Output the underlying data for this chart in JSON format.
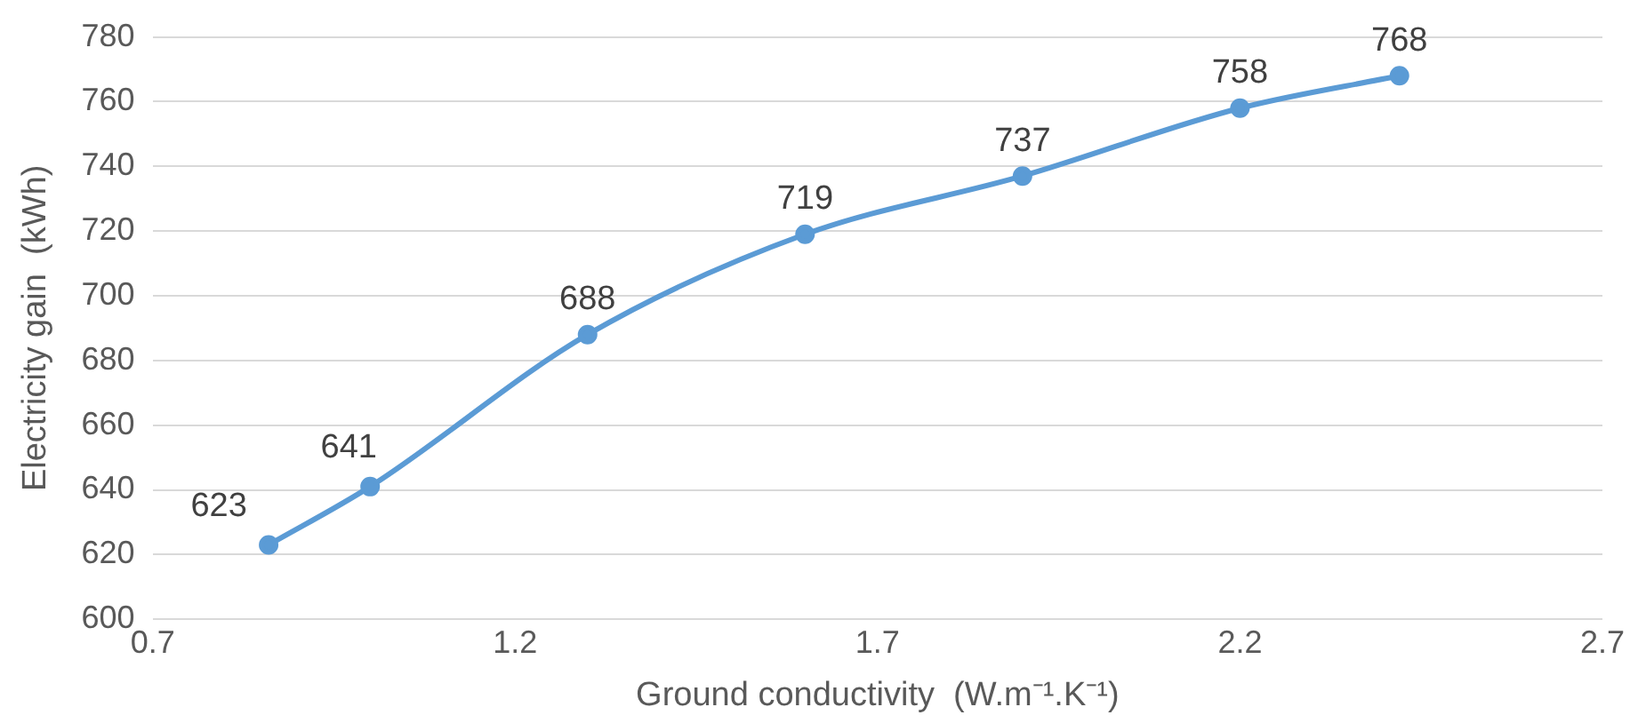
{
  "chart_data": {
    "type": "line",
    "xlabel": "Ground conductivity  (W.m⁻¹.K⁻¹)",
    "ylabel": "Electricity gain  (kWh)",
    "x": [
      0.86,
      1.0,
      1.3,
      1.6,
      1.9,
      2.2,
      2.42
    ],
    "series": [
      {
        "color": "#5b9bd5",
        "values": [
          623,
          641,
          688,
          719,
          737,
          758,
          768
        ]
      }
    ],
    "xlim": [
      0.7,
      2.7
    ],
    "xticks": [
      0.7,
      1.2,
      1.7,
      2.2,
      2.7
    ],
    "ylim": [
      600,
      780
    ],
    "yticks": [
      600,
      620,
      640,
      660,
      680,
      700,
      720,
      740,
      760,
      780
    ],
    "grid": "y",
    "legend": false,
    "marker": "circle",
    "line_style": "solid",
    "data_labels": true
  }
}
